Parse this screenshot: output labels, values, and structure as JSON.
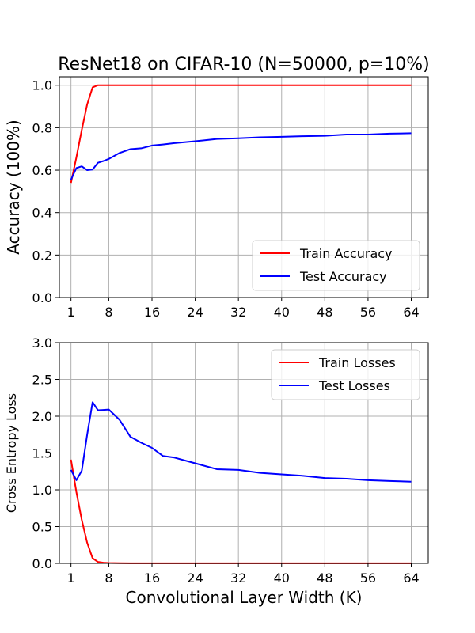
{
  "figure": {
    "title": "ResNet18 on CIFAR-10 (N=50000, p=10%)",
    "xlabel": "Convolutional Layer Width (K)"
  },
  "chart_data": [
    {
      "type": "line",
      "title": "ResNet18 on CIFAR-10 (N=50000, p=10%)",
      "xlabel": "",
      "ylabel": "Accuracy (100%)",
      "xlim": [
        -1.15,
        67.15
      ],
      "ylim": [
        0.0,
        1.04
      ],
      "xticks": [
        1,
        8,
        16,
        24,
        32,
        40,
        48,
        56,
        64
      ],
      "xtick_labels": [
        "1",
        "8",
        "16",
        "24",
        "32",
        "40",
        "48",
        "56",
        "64"
      ],
      "yticks": [
        0.0,
        0.2,
        0.4,
        0.6,
        0.8,
        1.0
      ],
      "ytick_labels": [
        "0.0",
        "0.2",
        "0.4",
        "0.6",
        "0.8",
        "1.0"
      ],
      "grid": true,
      "legend_position": "lower-right",
      "series": [
        {
          "name": "Train Accuracy",
          "color": "#ff0000",
          "x": [
            1,
            2,
            3,
            4,
            5,
            6,
            7,
            8,
            10,
            12,
            14,
            16,
            18,
            20,
            24,
            28,
            32,
            36,
            40,
            44,
            48,
            52,
            56,
            60,
            64
          ],
          "y": [
            0.54,
            0.66,
            0.79,
            0.91,
            0.99,
            1.0,
            1.0,
            1.0,
            1.0,
            1.0,
            1.0,
            1.0,
            1.0,
            1.0,
            1.0,
            1.0,
            1.0,
            1.0,
            1.0,
            1.0,
            1.0,
            1.0,
            1.0,
            1.0,
            1.0
          ]
        },
        {
          "name": "Test Accuracy",
          "color": "#0000ff",
          "x": [
            1,
            2,
            3,
            4,
            5,
            6,
            7,
            8,
            10,
            12,
            14,
            16,
            18,
            20,
            24,
            28,
            32,
            36,
            40,
            44,
            48,
            52,
            56,
            60,
            64
          ],
          "y": [
            0.555,
            0.61,
            0.618,
            0.6,
            0.603,
            0.635,
            0.643,
            0.653,
            0.681,
            0.699,
            0.703,
            0.716,
            0.721,
            0.727,
            0.736,
            0.747,
            0.75,
            0.755,
            0.757,
            0.76,
            0.762,
            0.768,
            0.768,
            0.772,
            0.774
          ]
        }
      ]
    },
    {
      "type": "line",
      "title": "",
      "xlabel": "Convolutional Layer Width (K)",
      "ylabel": "Cross Entropy Loss",
      "xlim": [
        -1.15,
        67.15
      ],
      "ylim": [
        0.0,
        3.0
      ],
      "xticks": [
        1,
        8,
        16,
        24,
        32,
        40,
        48,
        56,
        64
      ],
      "xtick_labels": [
        "1",
        "8",
        "16",
        "24",
        "32",
        "40",
        "48",
        "56",
        "64"
      ],
      "yticks": [
        0.0,
        0.5,
        1.0,
        1.5,
        2.0,
        2.5,
        3.0
      ],
      "ytick_labels": [
        "0.0",
        "0.5",
        "1.0",
        "1.5",
        "2.0",
        "2.5",
        "3.0"
      ],
      "grid": true,
      "legend_position": "upper-right",
      "series": [
        {
          "name": "Train Losses",
          "color": "#ff0000",
          "x": [
            1,
            2,
            3,
            4,
            5,
            6,
            7,
            8,
            10,
            12,
            14,
            16,
            18,
            20,
            24,
            28,
            32,
            36,
            40,
            44,
            48,
            52,
            56,
            60,
            64
          ],
          "y": [
            1.41,
            0.97,
            0.59,
            0.28,
            0.07,
            0.02,
            0.01,
            0.005,
            0.002,
            0.001,
            0.001,
            0.001,
            0.001,
            0.001,
            0.001,
            0.001,
            0.001,
            0.001,
            0.001,
            0.001,
            0.001,
            0.001,
            0.001,
            0.001,
            0.001
          ]
        },
        {
          "name": "Test Losses",
          "color": "#0000ff",
          "x": [
            1,
            2,
            3,
            4,
            5,
            6,
            8,
            10,
            12,
            14,
            16,
            18,
            20,
            24,
            28,
            32,
            36,
            40,
            44,
            48,
            52,
            56,
            60,
            64
          ],
          "y": [
            1.27,
            1.13,
            1.26,
            1.75,
            2.19,
            2.08,
            2.09,
            1.95,
            1.72,
            1.64,
            1.57,
            1.46,
            1.44,
            1.36,
            1.28,
            1.27,
            1.23,
            1.21,
            1.19,
            1.16,
            1.15,
            1.13,
            1.12,
            1.11
          ]
        }
      ]
    }
  ]
}
